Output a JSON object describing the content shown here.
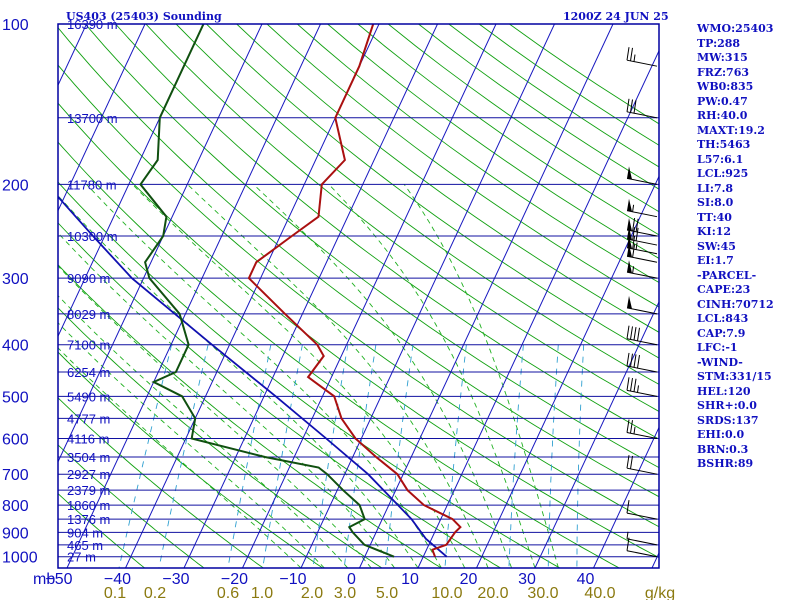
{
  "header": {
    "station": "US403 (25403) Sounding",
    "time": "1200Z 24 JUN 25"
  },
  "params": [
    "WMO:25403",
    "TP:288",
    "MW:315",
    "FRZ:763",
    "WB0:835",
    "PW:0.47",
    "RH:40.0",
    "MAXT:19.2",
    "TH:5463",
    "L57:6.1",
    "LCL:925",
    "LI:7.8",
    "SI:8.0",
    "TT:40",
    "KI:12",
    "SW:45",
    "EI:1.7",
    "-PARCEL-",
    "CAPE:23",
    "CINH:70712",
    "LCL:843",
    "CAP:7.9",
    "LFC:-1",
    "-WIND-",
    "STM:331/15",
    "HEL:120",
    "SHR+:0.0",
    "SRDS:137",
    "EHI:0.0",
    "BRN:0.3",
    "BSHR:89"
  ],
  "chart_data": {
    "type": "skew-t",
    "pressure_unit_label": "mb",
    "mixing_ratio_unit_label": "g/kg",
    "pressure_levels": [
      100,
      200,
      300,
      400,
      500,
      600,
      700,
      800,
      900,
      1000
    ],
    "temperature_ticks": [
      -50,
      -40,
      -30,
      -20,
      -10,
      0,
      10,
      20,
      30,
      40
    ],
    "mixing_ratio_labels": [
      "0.1",
      "0.2",
      "0.6",
      "1.0",
      "2.0",
      "3.0",
      "5.0",
      "10.0",
      "20.0",
      "30.0",
      "40.0"
    ],
    "height_levels": [
      {
        "label": "16390 m",
        "p": 100
      },
      {
        "label": "13700 m",
        "p": 150
      },
      {
        "label": "11780 m",
        "p": 200
      },
      {
        "label": "10300 m",
        "p": 250
      },
      {
        "label": "9090 m",
        "p": 300
      },
      {
        "label": "8029 m",
        "p": 350
      },
      {
        "label": "7100 m",
        "p": 400
      },
      {
        "label": "6254 m",
        "p": 450
      },
      {
        "label": "5490 m",
        "p": 500
      },
      {
        "label": "4777 m",
        "p": 550
      },
      {
        "label": "4116 m",
        "p": 600
      },
      {
        "label": "3504 m",
        "p": 650
      },
      {
        "label": "2927 m",
        "p": 700
      },
      {
        "label": "2379 m",
        "p": 750
      },
      {
        "label": "1860 m",
        "p": 800
      },
      {
        "label": "1376 m",
        "p": 850
      },
      {
        "label": "904 m",
        "p": 900
      },
      {
        "label": "465 m",
        "p": 950
      },
      {
        "label": "27 m",
        "p": 1000
      }
    ],
    "temperature": [
      {
        "p": 1000,
        "t": 12
      },
      {
        "p": 970,
        "t": 11
      },
      {
        "p": 950,
        "t": 13
      },
      {
        "p": 900,
        "t": 13.5
      },
      {
        "p": 880,
        "t": 14
      },
      {
        "p": 850,
        "t": 12
      },
      {
        "p": 800,
        "t": 6
      },
      {
        "p": 750,
        "t": 2
      },
      {
        "p": 700,
        "t": -1
      },
      {
        "p": 650,
        "t": -6
      },
      {
        "p": 600,
        "t": -11
      },
      {
        "p": 550,
        "t": -15
      },
      {
        "p": 500,
        "t": -18
      },
      {
        "p": 460,
        "t": -24
      },
      {
        "p": 420,
        "t": -23
      },
      {
        "p": 400,
        "t": -25
      },
      {
        "p": 350,
        "t": -33
      },
      {
        "p": 300,
        "t": -42
      },
      {
        "p": 280,
        "t": -42
      },
      {
        "p": 250,
        "t": -38
      },
      {
        "p": 230,
        "t": -35
      },
      {
        "p": 200,
        "t": -37
      },
      {
        "p": 180,
        "t": -35
      },
      {
        "p": 150,
        "t": -40
      },
      {
        "p": 120,
        "t": -40
      },
      {
        "p": 100,
        "t": -41
      }
    ],
    "dewpoint": [
      {
        "p": 1000,
        "t": 5
      },
      {
        "p": 950,
        "t": -1
      },
      {
        "p": 900,
        "t": -4
      },
      {
        "p": 880,
        "t": -5
      },
      {
        "p": 850,
        "t": -3
      },
      {
        "p": 800,
        "t": -5
      },
      {
        "p": 750,
        "t": -9
      },
      {
        "p": 700,
        "t": -13
      },
      {
        "p": 680,
        "t": -15
      },
      {
        "p": 650,
        "t": -25
      },
      {
        "p": 600,
        "t": -39
      },
      {
        "p": 550,
        "t": -40
      },
      {
        "p": 500,
        "t": -44
      },
      {
        "p": 470,
        "t": -50
      },
      {
        "p": 450,
        "t": -47
      },
      {
        "p": 400,
        "t": -47
      },
      {
        "p": 350,
        "t": -51
      },
      {
        "p": 300,
        "t": -59
      },
      {
        "p": 280,
        "t": -61
      },
      {
        "p": 250,
        "t": -60
      },
      {
        "p": 230,
        "t": -61
      },
      {
        "p": 200,
        "t": -68
      },
      {
        "p": 180,
        "t": -67
      },
      {
        "p": 150,
        "t": -70
      },
      {
        "p": 100,
        "t": -70
      }
    ],
    "parcel": [
      {
        "p": 1000,
        "t": 14
      },
      {
        "p": 925,
        "t": 9
      },
      {
        "p": 850,
        "t": 5
      },
      {
        "p": 700,
        "t": -6
      },
      {
        "p": 600,
        "t": -16
      },
      {
        "p": 500,
        "t": -28
      },
      {
        "p": 400,
        "t": -43
      },
      {
        "p": 300,
        "t": -62
      },
      {
        "p": 250,
        "t": -72
      },
      {
        "p": 200,
        "t": -84
      },
      {
        "p": 150,
        "t": -97
      },
      {
        "p": 120,
        "t": -106
      }
    ],
    "wind_barbs": [
      {
        "p": 1000,
        "spd": 10
      },
      {
        "p": 950,
        "spd": 5
      },
      {
        "p": 850,
        "spd": 10
      },
      {
        "p": 700,
        "spd": 20
      },
      {
        "p": 600,
        "spd": 25
      },
      {
        "p": 500,
        "spd": 35
      },
      {
        "p": 450,
        "spd": 40
      },
      {
        "p": 400,
        "spd": 40
      },
      {
        "p": 350,
        "spd": 50
      },
      {
        "p": 300,
        "spd": 55
      },
      {
        "p": 280,
        "spd": 60
      },
      {
        "p": 270,
        "spd": 65
      },
      {
        "p": 260,
        "spd": 70
      },
      {
        "p": 250,
        "spd": 70
      },
      {
        "p": 230,
        "spd": 55
      },
      {
        "p": 200,
        "spd": 50
      },
      {
        "p": 150,
        "spd": 30
      },
      {
        "p": 120,
        "spd": 25
      }
    ]
  },
  "colors": {
    "frame": "#0000a0",
    "isobar": "#1010a0",
    "isotherm": "#1818c0",
    "dry_adiabat": "#10a010",
    "moist_adiabat": "#20b020",
    "mixing_ratio": "#30a0d0",
    "temperature": "#aa1010",
    "dewpoint": "#105010",
    "parcel": "#1010b0",
    "barb": "#000000",
    "mixing_label": "#8b7a10"
  }
}
